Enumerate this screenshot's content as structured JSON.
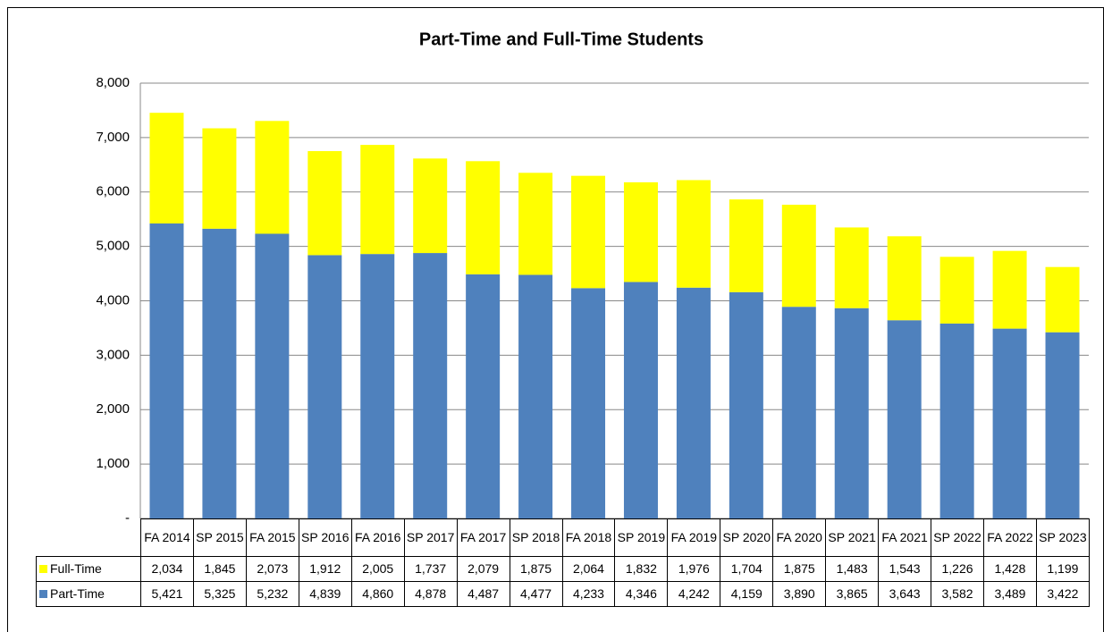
{
  "chart_data": {
    "type": "bar",
    "stacked": true,
    "title": "Part-Time and Full-Time Students",
    "categories": [
      "FA 2014",
      "SP 2015",
      "FA 2015",
      "SP 2016",
      "FA 2016",
      "SP 2017",
      "FA 2017",
      "SP 2018",
      "FA 2018",
      "SP 2019",
      "FA 2019",
      "SP 2020",
      "FA 2020",
      "SP 2021",
      "FA 2021",
      "SP 2022",
      "FA 2022",
      "SP 2023"
    ],
    "series": [
      {
        "name": "Full-Time",
        "color": "#ffff00",
        "values": [
          2034,
          1845,
          2073,
          1912,
          2005,
          1737,
          2079,
          1875,
          2064,
          1832,
          1976,
          1704,
          1875,
          1483,
          1543,
          1226,
          1428,
          1199
        ],
        "value_labels": [
          "2,034",
          "1,845",
          "2,073",
          "1,912",
          "2,005",
          "1,737",
          "2,079",
          "1,875",
          "2,064",
          "1,832",
          "1,976",
          "1,704",
          "1,875",
          "1,483",
          "1,543",
          "1,226",
          "1,428",
          "1,199"
        ]
      },
      {
        "name": "Part-Time",
        "color": "#4f81bd",
        "values": [
          5421,
          5325,
          5232,
          4839,
          4860,
          4878,
          4487,
          4477,
          4233,
          4346,
          4242,
          4159,
          3890,
          3865,
          3643,
          3582,
          3489,
          3422
        ],
        "value_labels": [
          "5,421",
          "5,325",
          "5,232",
          "4,839",
          "4,860",
          "4,878",
          "4,487",
          "4,477",
          "4,233",
          "4,346",
          "4,242",
          "4,159",
          "3,890",
          "3,865",
          "3,643",
          "3,582",
          "3,489",
          "3,422"
        ]
      }
    ],
    "ylim": [
      0,
      8000
    ],
    "yticks": [
      {
        "value": 0,
        "label": "-"
      },
      {
        "value": 1000,
        "label": "1,000"
      },
      {
        "value": 2000,
        "label": "2,000"
      },
      {
        "value": 3000,
        "label": "3,000"
      },
      {
        "value": 4000,
        "label": "4,000"
      },
      {
        "value": 5000,
        "label": "5,000"
      },
      {
        "value": 6000,
        "label": "6,000"
      },
      {
        "value": 7000,
        "label": "7,000"
      },
      {
        "value": 8000,
        "label": "8,000"
      }
    ],
    "grid": true
  }
}
